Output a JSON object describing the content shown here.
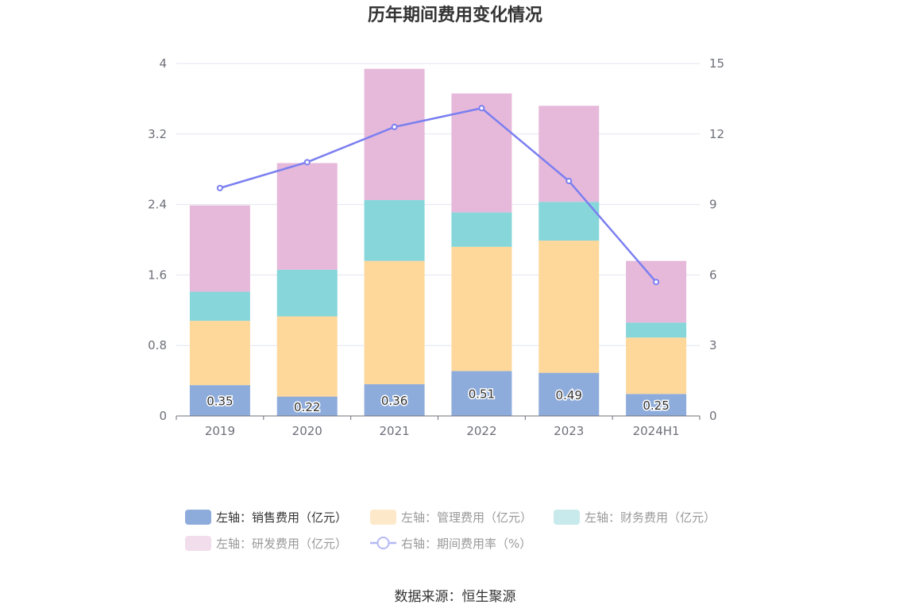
{
  "chart_data": {
    "type": "bar",
    "stacked": true,
    "title": "历年期间费用变化情况",
    "categories": [
      "2019",
      "2020",
      "2021",
      "2022",
      "2023",
      "2024H1"
    ],
    "left_axis": {
      "ylim": [
        0,
        4
      ],
      "ticks": [
        "0",
        "0.8",
        "1.6",
        "2.4",
        "3.2",
        "4"
      ]
    },
    "right_axis": {
      "ylim": [
        0,
        15
      ],
      "ticks": [
        "0",
        "3",
        "6",
        "9",
        "12",
        "15"
      ]
    },
    "grid": true,
    "legend_position": "bottom",
    "series": [
      {
        "name": "左轴：销售费用（亿元）",
        "type": "bar",
        "axis": "left",
        "color": "#8eacdb",
        "values": [
          0.35,
          0.22,
          0.36,
          0.51,
          0.49,
          0.25
        ],
        "show_labels": true
      },
      {
        "name": "左轴：管理费用（亿元）",
        "type": "bar",
        "axis": "left",
        "color": "#fed89b",
        "values": [
          0.73,
          0.91,
          1.4,
          1.41,
          1.5,
          0.64
        ]
      },
      {
        "name": "左轴：财务费用（亿元）",
        "type": "bar",
        "axis": "left",
        "color": "#86d6da",
        "values": [
          0.33,
          0.53,
          0.69,
          0.39,
          0.44,
          0.17
        ]
      },
      {
        "name": "左轴：研发费用（亿元）",
        "type": "bar",
        "axis": "left",
        "color": "#e6b9da",
        "values": [
          0.98,
          1.21,
          1.49,
          1.35,
          1.09,
          0.7
        ]
      },
      {
        "name": "右轴：期间费用率（%）",
        "type": "line",
        "axis": "right",
        "color": "#7b7ff0",
        "values": [
          9.7,
          10.8,
          12.3,
          13.1,
          10.0,
          5.7
        ]
      }
    ],
    "legend": [
      {
        "label": "左轴：销售费用（亿元）",
        "swatch": "#8eacdb",
        "text_color": "#333333",
        "kind": "bar"
      },
      {
        "label": "左轴：管理费用（亿元）",
        "swatch": "#fde9c9",
        "text_color": "#999999",
        "kind": "bar"
      },
      {
        "label": "左轴：财务费用（亿元）",
        "swatch": "#c8eaec",
        "text_color": "#999999",
        "kind": "bar"
      },
      {
        "label": "左轴：研发费用（亿元）",
        "swatch": "#f2ddec",
        "text_color": "#999999",
        "kind": "bar"
      },
      {
        "label": "右轴：期间费用率（%）",
        "swatch": "#b5b8f5",
        "text_color": "#999999",
        "kind": "line"
      }
    ],
    "source": "数据来源：恒生聚源"
  }
}
